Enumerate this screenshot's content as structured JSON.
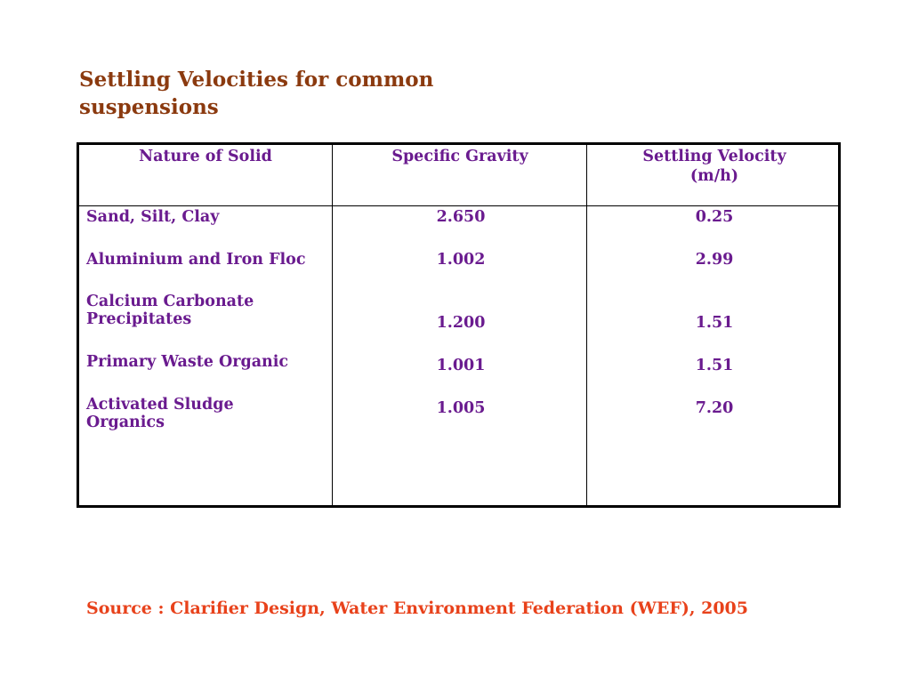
{
  "title": "Settling Velocities for common suspensions",
  "table": {
    "headers": [
      "Nature of Solid",
      "Specific Gravity",
      "Settling Velocity",
      "(m/h)"
    ],
    "rows": [
      {
        "solid": "Sand, Silt, Clay",
        "gravity": "2.650",
        "velocity": "0.25"
      },
      {
        "solid": "Aluminium and Iron Floc",
        "gravity": "1.002",
        "velocity": "2.99"
      },
      {
        "solid_line1": "Calcium Carbonate",
        "solid_line2": "Precipitates",
        "gravity": "1.200",
        "velocity": "1.51"
      },
      {
        "solid": "Primary Waste Organic",
        "gravity": "1.001",
        "velocity": "1.51"
      },
      {
        "solid_line1": "Activated Sludge",
        "solid_line2": "Organics",
        "gravity": "1.005",
        "velocity": "7.20"
      }
    ]
  },
  "source": "Source : Clarifier Design, Water Environment Federation (WEF), 2005"
}
